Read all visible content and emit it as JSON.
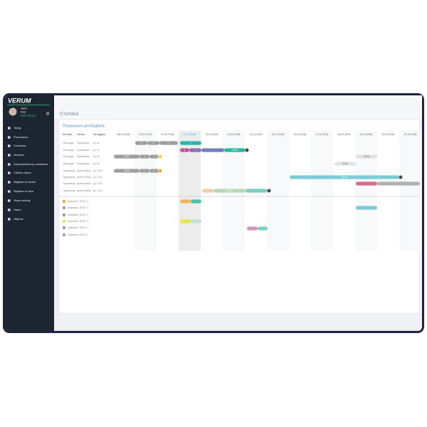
{
  "sidebar": {
    "logo": "VERUM",
    "user": {
      "first_name": "John",
      "last_name": "Doe",
      "role": "Head manager"
    },
    "menu": [
      "Today",
      "Procurance",
      "Contracts",
      "Vendors",
      "Subscriptions by contractor",
      "Clients orders",
      "Register of works",
      "Register of acts",
      "Users activity",
      "Users",
      "Objects"
    ]
  },
  "page": {
    "title": "Статика",
    "panel_title": "Планування автобудівель"
  },
  "table": {
    "headers": [
      "Контакт",
      "Об'єкт",
      "№ будівлі"
    ],
    "dates": [
      "08.11.2018",
      "09.11.2018",
      "10.11.2018",
      "11.11.2018",
      "12.11.2018",
      "13.11.2018",
      "14.11.2018",
      "15.11.2018",
      "16.11.2018",
      "17.11.2018",
      "18.11.2018",
      "19.11.2018",
      "20.11.2018",
      "21.11.2018"
    ],
    "rows": [
      [
        "Світлодар",
        "Пушкінська",
        "д.1 к1"
      ],
      [
        "Світлодар",
        "Пушкінська",
        "д.1 к1"
      ],
      [
        "Світлодар",
        "Пушкінська",
        "д.1 к1"
      ],
      [
        "Світлодар",
        "Пушкінська",
        "д.1 к1"
      ],
      [
        "Трускавець",
        "Довга Набер.",
        "д.17 к19"
      ],
      [
        "Трускавець",
        "Довга Набер.",
        "д.17 к19"
      ],
      [
        "Трускавець",
        "Довга Набер.",
        "д.17 к19"
      ],
      [
        "Трускавець",
        "Довга Набер.",
        "д.17 к19"
      ]
    ],
    "companies": [
      "Компанія / 2018 / 1",
      "Компанія / 2018 / 1",
      "Компанія / 2018 / 1",
      "Компанія / 2018 / 1",
      "Компанія / 2018 / 1",
      "Компанія / 2018 / 1"
    ]
  },
  "bar_labels": [
    "1",
    "1",
    "1",
    "1",
    "1",
    "1",
    "12/15",
    "12/15",
    "1",
    "1",
    "25 кв",
    "25 кв",
    "12/15",
    "1",
    "1",
    "12/15",
    "12/15"
  ]
}
